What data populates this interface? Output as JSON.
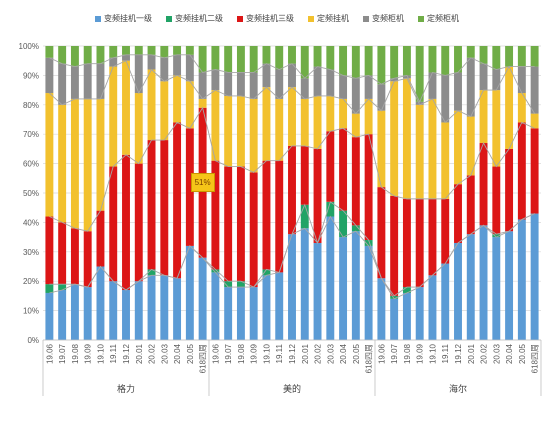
{
  "chart_data": {
    "type": "stacked-bar-with-lines",
    "series": [
      {
        "name": "变频挂机一级",
        "color": "#5b9bd5",
        "values": [
          16,
          17,
          19,
          18,
          25,
          20,
          17,
          20,
          22,
          22,
          21,
          32,
          28,
          23,
          18,
          18,
          18,
          22,
          23,
          36,
          38,
          33,
          42,
          35,
          37,
          32,
          21,
          14,
          16,
          18,
          22,
          26,
          33,
          36,
          39,
          35,
          37,
          41,
          43
        ]
      },
      {
        "name": "变频挂机二级",
        "color": "#21a366",
        "values": [
          3,
          2,
          0,
          0,
          0,
          0,
          0,
          0,
          2,
          0,
          0,
          0,
          0,
          1,
          2,
          2,
          0,
          2,
          0,
          0,
          8,
          0,
          5,
          9,
          2,
          2,
          0,
          1,
          2,
          0,
          0,
          0,
          0,
          0,
          0,
          1,
          0,
          0,
          0
        ]
      },
      {
        "name": "变频挂机三级",
        "color": "#dc1616",
        "values": [
          23,
          21,
          19,
          19,
          19,
          39,
          46,
          40,
          44,
          46,
          53,
          40,
          51,
          37,
          39,
          39,
          39,
          37,
          38,
          30,
          20,
          32,
          24,
          28,
          30,
          36,
          31,
          34,
          30,
          30,
          26,
          22,
          20,
          20,
          28,
          23,
          28,
          33,
          29
        ]
      },
      {
        "name": "定频挂机",
        "color": "#f2c12e",
        "values": [
          42,
          40,
          44,
          45,
          38,
          34,
          32,
          24,
          24,
          20,
          16,
          16,
          3,
          24,
          24,
          24,
          25,
          25,
          21,
          20,
          16,
          18,
          12,
          10,
          8,
          12,
          26,
          39,
          41,
          32,
          34,
          26,
          25,
          20,
          18,
          26,
          28,
          10,
          5
        ]
      },
      {
        "name": "变频柜机",
        "color": "#8c8c8c",
        "values": [
          12,
          14,
          11,
          12,
          12,
          3,
          2,
          13,
          5,
          8,
          7,
          9,
          9,
          7,
          8,
          8,
          9,
          8,
          10,
          8,
          7,
          10,
          9,
          8,
          12,
          8,
          9,
          1,
          1,
          1,
          9,
          16,
          13,
          20,
          9,
          7,
          0,
          9,
          16
        ]
      },
      {
        "name": "定频柜机",
        "color": "#70ad47",
        "values": [
          4,
          6,
          7,
          6,
          6,
          4,
          3,
          3,
          3,
          4,
          3,
          3,
          9,
          8,
          9,
          9,
          9,
          6,
          8,
          6,
          11,
          7,
          8,
          10,
          11,
          10,
          13,
          11,
          10,
          19,
          9,
          10,
          9,
          4,
          6,
          8,
          7,
          7,
          7
        ]
      }
    ],
    "x_labels": [
      "19.06",
      "19.07",
      "19.08",
      "19.09",
      "19.10",
      "19.11",
      "19.12",
      "20.01",
      "20.02",
      "20.03",
      "20.04",
      "20.05",
      "618四周",
      "19.06",
      "19.07",
      "19.08",
      "19.09",
      "19.10",
      "19.11",
      "19.12",
      "20.01",
      "20.02",
      "20.03",
      "20.04",
      "20.05",
      "618四周",
      "19.06",
      "19.07",
      "19.08",
      "19.09",
      "19.10",
      "19.11",
      "19.12",
      "20.01",
      "20.02",
      "20.03",
      "20.04",
      "20.05",
      "618四周"
    ],
    "groups": [
      {
        "name": "格力",
        "start": 0,
        "count": 13
      },
      {
        "name": "美的",
        "start": 13,
        "count": 13
      },
      {
        "name": "海尔",
        "start": 26,
        "count": 13
      }
    ],
    "y_ticks": [
      "0%",
      "10%",
      "20%",
      "30%",
      "40%",
      "50%",
      "60%",
      "70%",
      "80%",
      "90%",
      "100%"
    ],
    "ylim": [
      0,
      100
    ],
    "stacked": true,
    "lines_connect_cumulative": true,
    "legend_position": "top",
    "annotation": {
      "text": "51%",
      "bar_index": 12
    }
  }
}
